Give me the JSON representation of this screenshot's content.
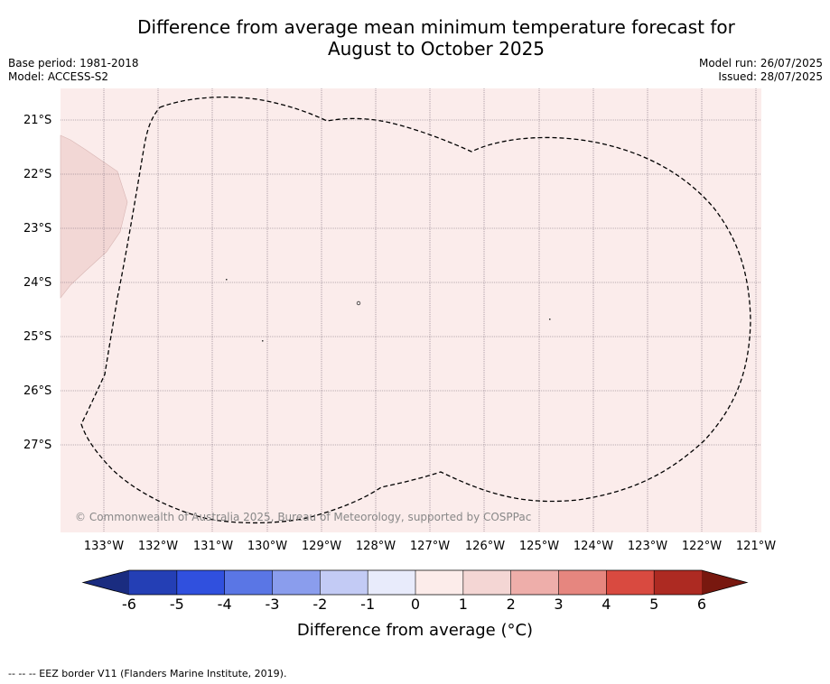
{
  "title_line1": "Difference from average mean minimum temperature forecast for",
  "title_line2": "August to October 2025",
  "base_period": "Base period: 1981-2018",
  "model": "Model: ACCESS-S2",
  "model_run": "Model run: 26/07/2025",
  "issued": "Issued: 28/07/2025",
  "copyright": "© Commonwealth of Australia 2025, Bureau of Meteorology, supported by COSPPac",
  "lat_labels": [
    "21°S",
    "22°S",
    "23°S",
    "24°S",
    "25°S",
    "26°S",
    "27°S"
  ],
  "lon_labels": [
    "133°W",
    "132°W",
    "131°W",
    "130°W",
    "129°W",
    "128°W",
    "127°W",
    "126°W",
    "125°W",
    "124°W",
    "123°W",
    "122°W",
    "121°W"
  ],
  "colorbar": {
    "ticks": [
      "-6",
      "-5",
      "-4",
      "-3",
      "-2",
      "-1",
      "0",
      "1",
      "2",
      "3",
      "4",
      "5",
      "6"
    ],
    "colors": [
      "#1a2c80",
      "#243fb5",
      "#3050de",
      "#5a76e5",
      "#8a9ded",
      "#c3cbf5",
      "#e8ebfb",
      "#fcecea",
      "#f4d6d4",
      "#eeaeaa",
      "#e6867f",
      "#d94a40",
      "#ad2a22",
      "#78180f"
    ],
    "label": "Difference from average (°C)"
  },
  "map_fill_color": "#fbeceb",
  "anomaly_patch_color": "#f2d7d5",
  "footnote": "-- -- -- EEZ border V11 (Flanders Marine Institute, 2019)."
}
